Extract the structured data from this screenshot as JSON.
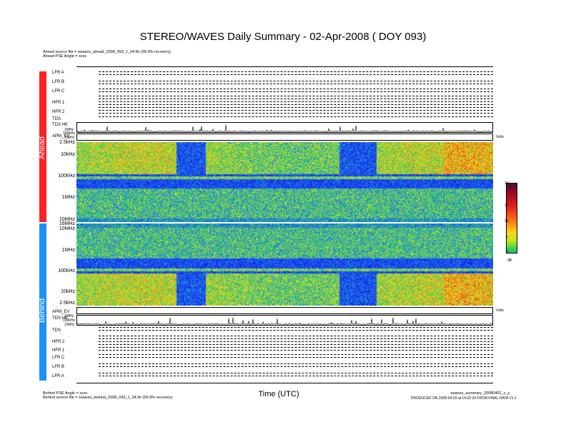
{
  "chart_data": {
    "type": "heatmap",
    "title": "STEREO/WAVES Daily Summary - 02-Apr-2008 ( DOY 093)",
    "xlabel": "Time (UTC)",
    "colorbar": {
      "ticks": [
        "24",
        "17",
        "12",
        "7",
        "2"
      ],
      "unit": "dB"
    },
    "freq_ticks_ahead": [
      "2.5kHz",
      "10kHz",
      "100kHz",
      "1MHz",
      "10MHz",
      "16MHz"
    ],
    "freq_ticks_behind": [
      "16MHz",
      "10MHz",
      "1MHz",
      "100kHz",
      "10kHz",
      "2.5kHz"
    ],
    "spacecraft": [
      "Ahead",
      "Behind"
    ],
    "ahead_instruments": [
      "LFR A",
      "LFR B",
      "LFR C",
      "HFR 1",
      "HFR 2",
      "TDS",
      "TDS HK",
      "APM_EV"
    ],
    "behind_instruments": [
      "APM_EV",
      "TDS HK",
      "TDS",
      "HFR 2",
      "HFR 1",
      "LFR C",
      "LFR B",
      "LFR A"
    ]
  },
  "header": {
    "ahead_source": "Ahead source file = swaves_ahead_2008_093_1_04.fin (99.9% recovery)",
    "ahead_angle": "Ahead PSE Angle = xxxx"
  },
  "footer": {
    "behind_angle": "Behind PSE Angle = xxxx",
    "behind_source": "Behind source file = swaves_behind_2008_093_1_04.fin (99.9% recovery)",
    "plot_file": "swaves_summary_20080402_v_s",
    "produced": "PRODUCED ON 2008-04-03 at 14:32:33 FROM FINAL DATA V1.1"
  },
  "panel_small_labels": {
    "hk_top": "1MHz",
    "hk_mid": "100kHz",
    "hk_bot": "10kHz",
    "volts": "Volts"
  }
}
